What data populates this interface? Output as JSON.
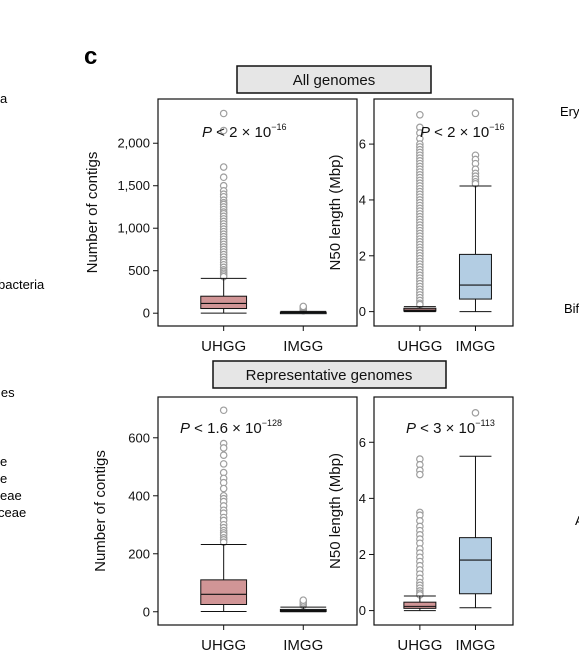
{
  "panel_label": "c",
  "edge_text": {
    "left": [
      "a",
      "bacteria",
      "les",
      "e",
      "e",
      "eae",
      "ceae"
    ],
    "right": [
      "Ery",
      "Bif",
      "A"
    ]
  },
  "sections": [
    {
      "banner": "All genomes"
    },
    {
      "banner": "Representative genomes"
    }
  ],
  "colors": {
    "uhgg": "#d19596",
    "imgg": "#b3cde3",
    "outlier": "#9e9e9e",
    "frame": "#111111"
  },
  "chart_data": [
    {
      "type": "box",
      "section": "All genomes",
      "ylabel": "Number of contigs",
      "ylim": [
        -80,
        2450
      ],
      "yticks": [
        0,
        500,
        1000,
        1500,
        2000
      ],
      "ytick_labels": [
        "0",
        "500",
        "1,000",
        "1,500",
        "2,000"
      ],
      "categories": [
        "UHGG",
        "IMGG"
      ],
      "pvalue": {
        "prefix": "P",
        "text": " < 2 × 10",
        "exp": "−16"
      },
      "boxes": [
        {
          "q1": 55,
          "median": 115,
          "q3": 200,
          "whisker_low": 1,
          "whisker_high": 410,
          "outliers": [
            2350,
            2150,
            1720,
            1600,
            1500,
            1440,
            1400,
            1370,
            1330,
            1300,
            1280,
            1250,
            1220,
            1190,
            1170,
            1140,
            1110,
            1080,
            1050,
            1020,
            990,
            960,
            930,
            900,
            870,
            840,
            810,
            780,
            750,
            720,
            690,
            660,
            630,
            600,
            570,
            540,
            510,
            490,
            470,
            450,
            430
          ]
        },
        {
          "q1": 2,
          "median": 6,
          "q3": 12,
          "whisker_low": 1,
          "whisker_high": 22,
          "outliers": [
            30,
            40,
            50,
            60,
            70,
            80
          ]
        }
      ]
    },
    {
      "type": "box",
      "section": "All genomes",
      "ylabel": "N50 length (Mbp)",
      "ylim": [
        -0.3,
        7.4
      ],
      "yticks": [
        0,
        2,
        4,
        6
      ],
      "ytick_labels": [
        "0",
        "2",
        "4",
        "6"
      ],
      "categories": [
        "UHGG",
        "IMGG"
      ],
      "pvalue": {
        "prefix": "P",
        "text": " < 2 × 10",
        "exp": "−16"
      },
      "boxes": [
        {
          "q1": 0.02,
          "median": 0.05,
          "q3": 0.12,
          "whisker_low": 0.0,
          "whisker_high": 0.18,
          "outliers": [
            7.05,
            6.6,
            6.4,
            6.2,
            6.0,
            5.9,
            5.8,
            5.7,
            5.6,
            5.5,
            5.4,
            5.3,
            5.2,
            5.1,
            5.0,
            4.9,
            4.8,
            4.7,
            4.6,
            4.5,
            4.4,
            4.3,
            4.2,
            4.1,
            4.0,
            3.9,
            3.8,
            3.7,
            3.6,
            3.5,
            3.4,
            3.3,
            3.2,
            3.1,
            3.0,
            2.9,
            2.8,
            2.7,
            2.6,
            2.5,
            2.4,
            2.3,
            2.2,
            2.1,
            2.0,
            1.9,
            1.8,
            1.7,
            1.6,
            1.5,
            1.4,
            1.3,
            1.2,
            1.1,
            1.0,
            0.9,
            0.8,
            0.7,
            0.6,
            0.5,
            0.4,
            0.3,
            0.25
          ]
        },
        {
          "q1": 0.45,
          "median": 0.95,
          "q3": 2.05,
          "whisker_low": 0.0,
          "whisker_high": 4.5,
          "outliers": [
            7.1,
            5.6,
            5.45,
            5.3,
            5.1,
            4.95,
            4.85,
            4.75,
            4.65,
            4.58
          ]
        }
      ]
    },
    {
      "type": "box",
      "section": "Representative genomes",
      "ylabel": "Number of contigs",
      "ylim": [
        -25,
        720
      ],
      "yticks": [
        0,
        200,
        400,
        600
      ],
      "ytick_labels": [
        "0",
        "200",
        "400",
        "600"
      ],
      "categories": [
        "UHGG",
        "IMGG"
      ],
      "pvalue": {
        "prefix": "P",
        "text": " < 1.6 × 10",
        "exp": "−128"
      },
      "boxes": [
        {
          "q1": 25,
          "median": 60,
          "q3": 110,
          "whisker_low": 1,
          "whisker_high": 232,
          "outliers": [
            695,
            580,
            565,
            540,
            510,
            480,
            460,
            445,
            425,
            400,
            390,
            380,
            365,
            350,
            340,
            325,
            315,
            300,
            290,
            280,
            272,
            265,
            255,
            248,
            240
          ]
        },
        {
          "q1": 1,
          "median": 4,
          "q3": 8,
          "whisker_low": 0,
          "whisker_high": 16,
          "outliers": [
            22,
            28,
            34,
            40
          ]
        }
      ]
    },
    {
      "type": "box",
      "section": "Representative genomes",
      "ylabel": "N50 length (Mbp)",
      "ylim": [
        -0.3,
        7.4
      ],
      "yticks": [
        0,
        2,
        4,
        6
      ],
      "ytick_labels": [
        "0",
        "2",
        "4",
        "6"
      ],
      "categories": [
        "UHGG",
        "IMGG"
      ],
      "pvalue": {
        "prefix": "P",
        "text": " < 3 × 10",
        "exp": "−113"
      },
      "boxes": [
        {
          "q1": 0.08,
          "median": 0.15,
          "q3": 0.3,
          "whisker_low": 0.0,
          "whisker_high": 0.52,
          "outliers": [
            5.4,
            5.2,
            5.0,
            4.85,
            3.5,
            3.4,
            3.2,
            3.0,
            2.85,
            2.7,
            2.55,
            2.4,
            2.2,
            2.05,
            1.9,
            1.75,
            1.6,
            1.45,
            1.3,
            1.15,
            1.0,
            0.9,
            0.8,
            0.7,
            0.62,
            0.56
          ]
        },
        {
          "q1": 0.6,
          "median": 1.8,
          "q3": 2.6,
          "whisker_low": 0.1,
          "whisker_high": 5.5,
          "outliers": [
            7.05
          ]
        }
      ]
    }
  ]
}
